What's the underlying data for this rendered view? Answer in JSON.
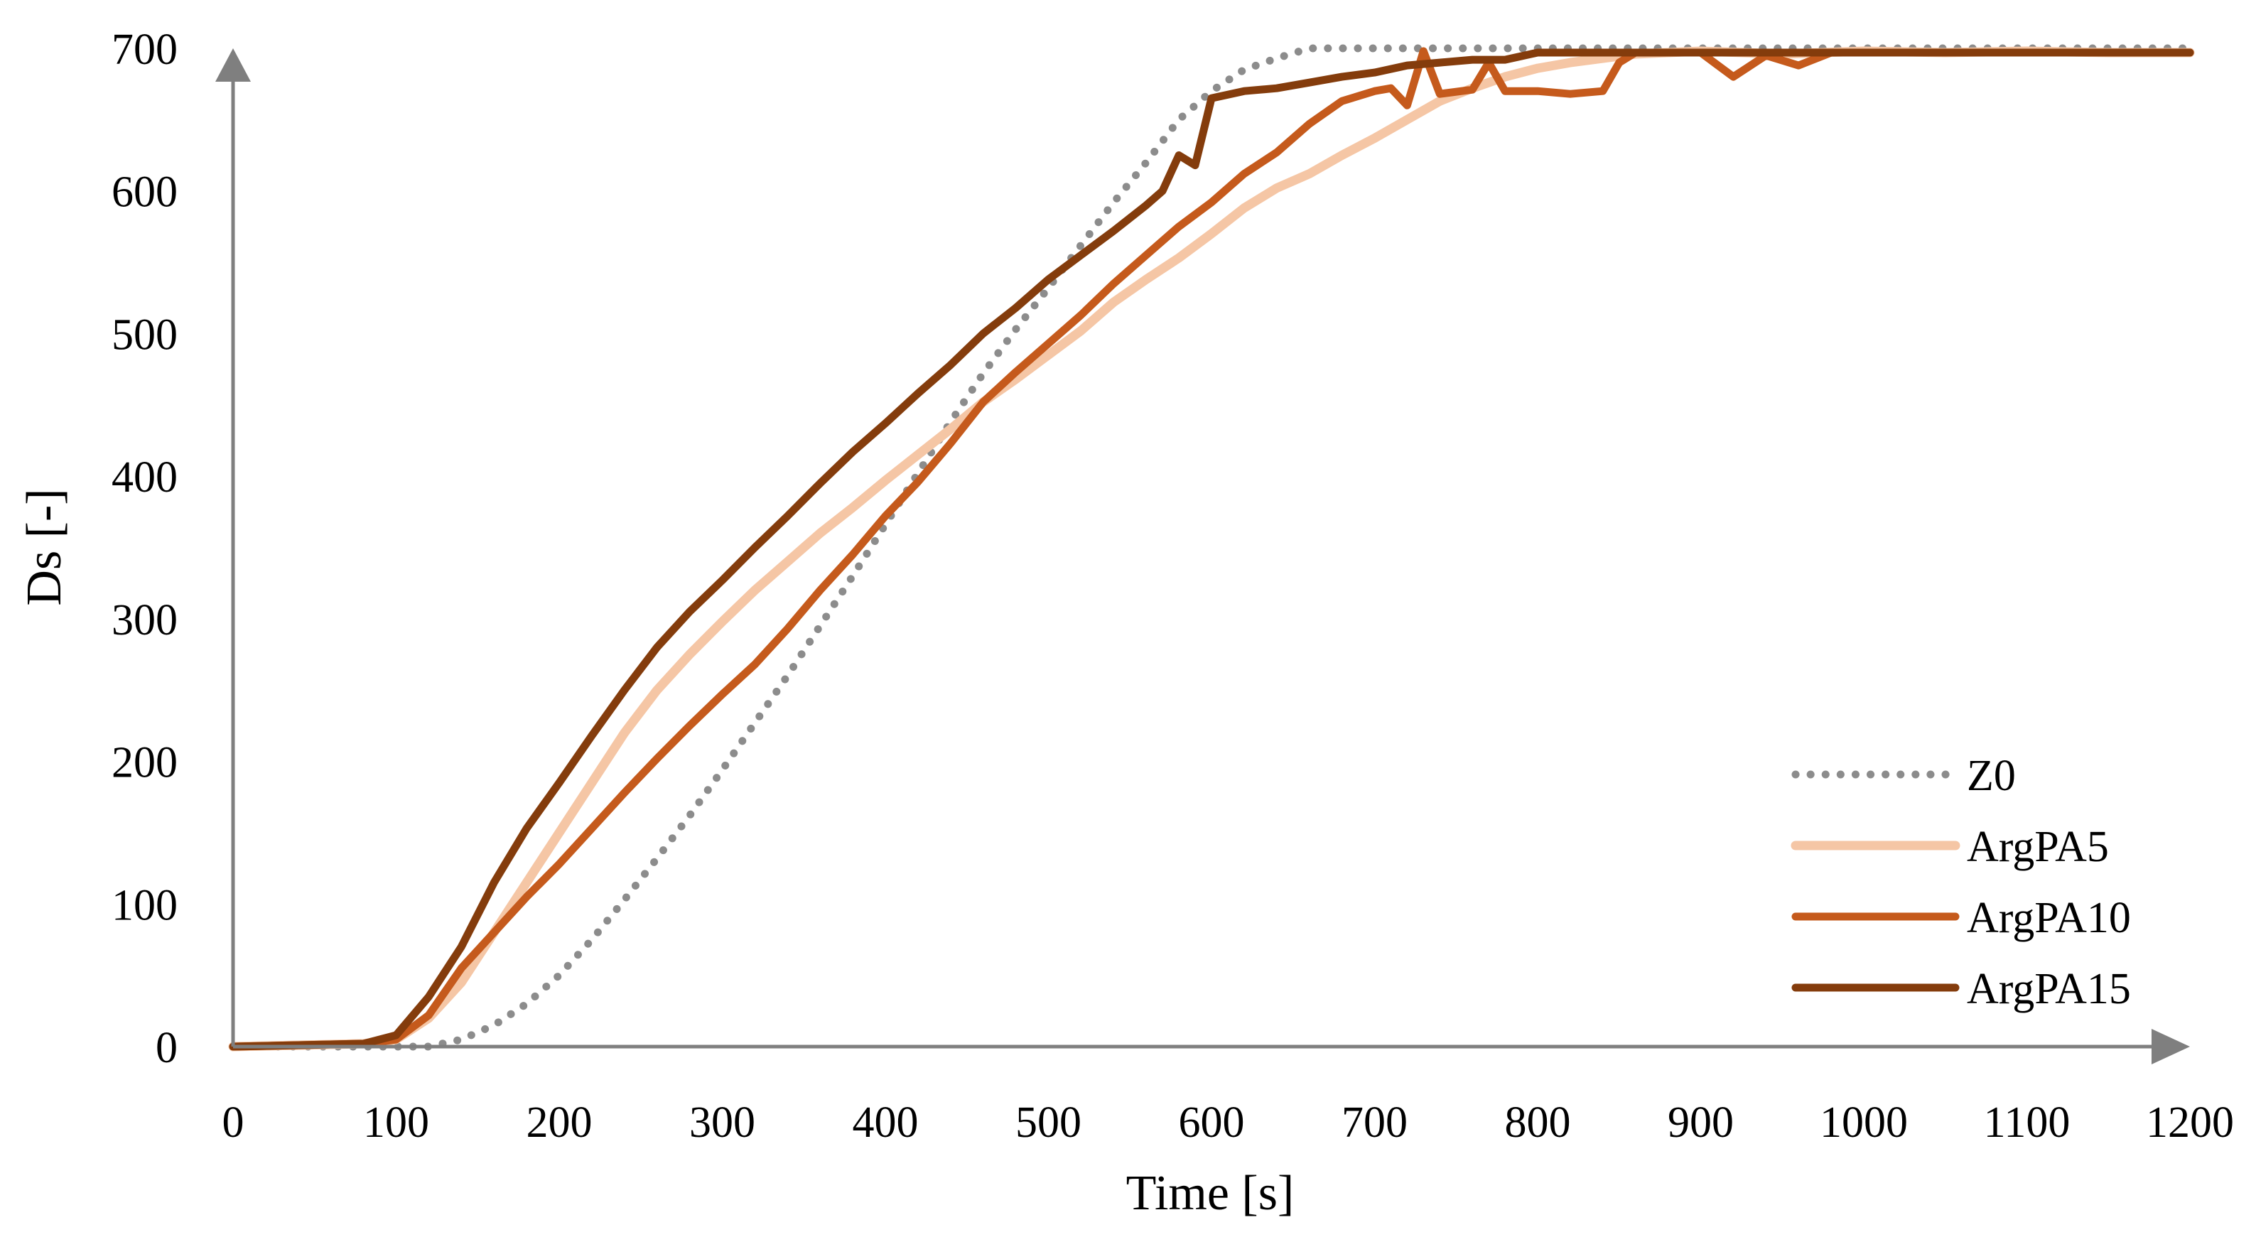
{
  "chart_data": {
    "type": "line",
    "title": "",
    "xlabel": "Time [s]",
    "ylabel": "Ds [-]",
    "xlim": [
      0,
      1200
    ],
    "ylim": [
      0,
      700
    ],
    "xticks": [
      0,
      100,
      200,
      300,
      400,
      500,
      600,
      700,
      800,
      900,
      1000,
      1100,
      1200
    ],
    "yticks": [
      0,
      100,
      200,
      300,
      400,
      500,
      600,
      700
    ],
    "grid": false,
    "legend_position": "bottom-right",
    "colors": {
      "Z0": "#8c8c8c",
      "ArgPA5": "#f5c6a5",
      "ArgPA10": "#c55a1c",
      "ArgPA15": "#843c0c",
      "axis": "#7f7f7f"
    },
    "series": [
      {
        "name": "Z0",
        "style": "dotted",
        "x": [
          0,
          100,
          120,
          140,
          160,
          180,
          200,
          220,
          240,
          260,
          280,
          300,
          320,
          340,
          360,
          380,
          400,
          420,
          440,
          460,
          480,
          500,
          520,
          540,
          560,
          580,
          600,
          620,
          640,
          660,
          700,
          800,
          900,
          1000,
          1100,
          1200
        ],
        "y": [
          0,
          0,
          0,
          5,
          15,
          30,
          50,
          75,
          103,
          132,
          162,
          194,
          227,
          260,
          295,
          330,
          366,
          402,
          438,
          472,
          503,
          532,
          562,
          592,
          620,
          650,
          670,
          685,
          693,
          700,
          700,
          700,
          700,
          700,
          700,
          700
        ]
      },
      {
        "name": "ArgPA5",
        "style": "solid",
        "x": [
          0,
          80,
          100,
          120,
          140,
          160,
          180,
          200,
          220,
          240,
          260,
          280,
          300,
          320,
          340,
          360,
          380,
          400,
          420,
          440,
          460,
          480,
          500,
          520,
          540,
          560,
          580,
          600,
          620,
          640,
          660,
          680,
          700,
          720,
          740,
          760,
          780,
          800,
          820,
          840,
          860,
          900,
          950,
          1000,
          1050,
          1100,
          1150,
          1200
        ],
        "y": [
          0,
          2,
          5,
          20,
          45,
          80,
          115,
          150,
          185,
          220,
          250,
          275,
          298,
          320,
          340,
          360,
          378,
          397,
          415,
          433,
          452,
          468,
          485,
          502,
          522,
          538,
          553,
          570,
          588,
          602,
          612,
          625,
          637,
          650,
          663,
          672,
          680,
          686,
          690,
          693,
          696,
          698,
          696,
          698,
          697,
          698,
          697,
          697
        ]
      },
      {
        "name": "ArgPA10",
        "style": "solid",
        "x": [
          0,
          80,
          100,
          120,
          140,
          160,
          180,
          200,
          220,
          240,
          260,
          280,
          300,
          320,
          340,
          360,
          380,
          400,
          420,
          440,
          460,
          480,
          500,
          520,
          540,
          560,
          580,
          600,
          620,
          640,
          660,
          680,
          700,
          710,
          720,
          730,
          740,
          760,
          770,
          780,
          800,
          820,
          840,
          850,
          860,
          880,
          900,
          920,
          940,
          960,
          980,
          1000,
          1050,
          1100,
          1150,
          1200
        ],
        "y": [
          0,
          2,
          5,
          22,
          55,
          80,
          105,
          128,
          153,
          178,
          202,
          225,
          247,
          268,
          293,
          320,
          345,
          372,
          396,
          423,
          452,
          473,
          493,
          513,
          535,
          555,
          575,
          592,
          612,
          627,
          647,
          663,
          670,
          672,
          660,
          698,
          668,
          671,
          690,
          670,
          670,
          668,
          670,
          690,
          697,
          697,
          697,
          680,
          695,
          688,
          697,
          697,
          697,
          697,
          697,
          697
        ]
      },
      {
        "name": "ArgPA15",
        "style": "solid",
        "x": [
          0,
          80,
          100,
          120,
          140,
          160,
          180,
          200,
          220,
          240,
          260,
          280,
          300,
          320,
          340,
          360,
          380,
          400,
          420,
          440,
          460,
          480,
          500,
          520,
          540,
          560,
          570,
          580,
          590,
          600,
          620,
          640,
          660,
          680,
          700,
          720,
          740,
          760,
          780,
          800,
          850,
          900,
          950,
          1000,
          1050,
          1100,
          1150,
          1200
        ],
        "y": [
          0,
          2,
          8,
          35,
          70,
          115,
          153,
          185,
          218,
          250,
          280,
          305,
          327,
          350,
          372,
          395,
          417,
          437,
          458,
          478,
          500,
          518,
          538,
          555,
          572,
          590,
          600,
          625,
          618,
          665,
          670,
          672,
          676,
          680,
          683,
          688,
          690,
          692,
          692,
          697,
          697,
          697,
          697,
          697,
          697,
          697,
          697,
          697
        ]
      }
    ]
  }
}
